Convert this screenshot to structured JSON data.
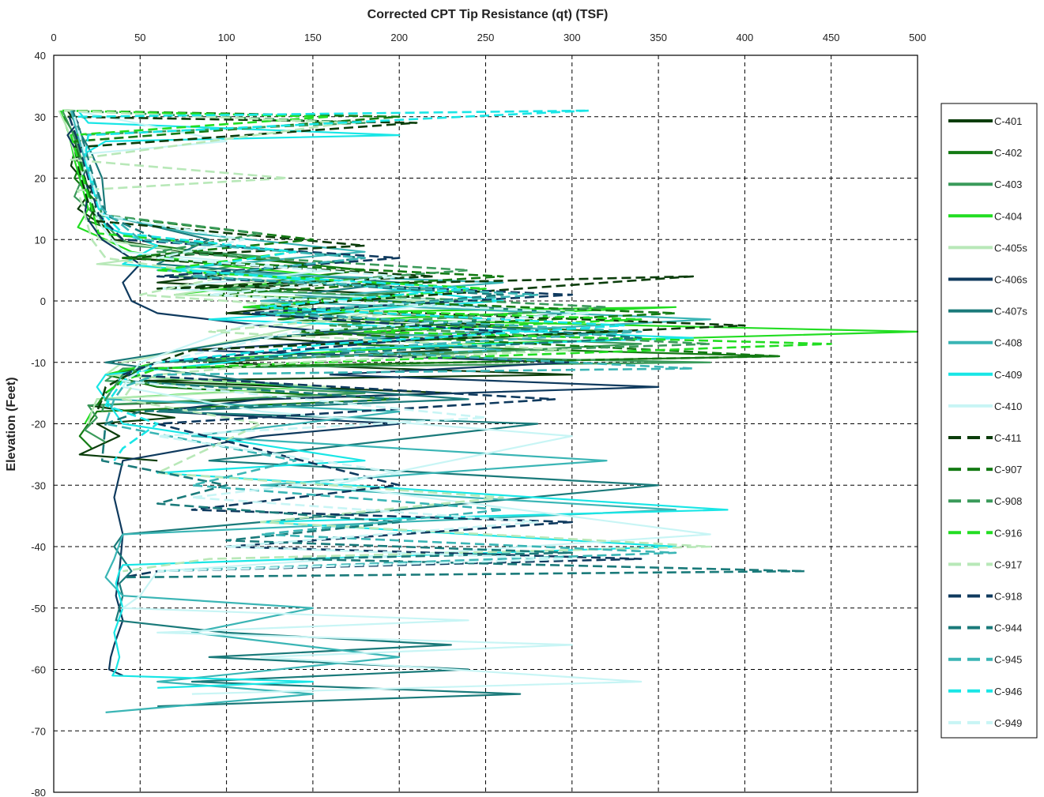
{
  "chart_data": {
    "type": "line",
    "title": "Corrected CPT Tip Resistance (qt) (TSF)",
    "xlabel": "",
    "ylabel": "Elevation (Feet)",
    "xlim": [
      0,
      500
    ],
    "ylim": [
      -80,
      40
    ],
    "x_ticks": [
      "0",
      "50",
      "100",
      "150",
      "200",
      "250",
      "300",
      "350",
      "400",
      "450",
      "500"
    ],
    "y_ticks": [
      "40",
      "30",
      "20",
      "10",
      "0",
      "-10",
      "-20",
      "-30",
      "-40",
      "-50",
      "-60",
      "-70",
      "-80"
    ],
    "x_axis_position": "top",
    "grid": true,
    "legend_position": "right",
    "series": [
      {
        "name": "C-401",
        "color": "#0b3d0b",
        "dashed": false,
        "x": [
          8,
          15,
          10,
          22,
          14,
          30,
          35,
          75,
          150,
          60,
          200,
          100,
          260,
          120,
          230,
          90,
          300,
          50,
          230,
          20,
          70,
          25,
          38,
          15,
          60
        ],
        "y": [
          31,
          28,
          22,
          18,
          15,
          12,
          10,
          8,
          6,
          3,
          1,
          -2,
          -4,
          -6,
          -8,
          -10,
          -12,
          -13,
          -15,
          -17,
          -19,
          -20,
          -22,
          -25,
          -26
        ]
      },
      {
        "name": "C-402",
        "color": "#137a13",
        "dashed": false,
        "x": [
          6,
          12,
          18,
          12,
          25,
          20,
          40,
          60,
          110,
          180,
          85,
          240,
          130,
          330,
          160,
          420,
          50,
          30,
          60,
          200,
          25,
          20,
          15,
          22
        ],
        "y": [
          30,
          27,
          24,
          20,
          16,
          13,
          11,
          9,
          7,
          5,
          2,
          0,
          -3,
          -5,
          -7,
          -9,
          -11,
          -12,
          -14,
          -16,
          -18,
          -20,
          -22,
          -24
        ]
      },
      {
        "name": "C-403",
        "color": "#3a9a5a",
        "dashed": false,
        "x": [
          5,
          10,
          14,
          18,
          12,
          28,
          35,
          45,
          130,
          70,
          220,
          110,
          250,
          160,
          340,
          200,
          380,
          40,
          30,
          180,
          20,
          25,
          18,
          30
        ],
        "y": [
          31,
          28,
          25,
          21,
          17,
          13,
          11,
          9,
          7,
          4,
          2,
          -1,
          -3,
          -5,
          -7,
          -9,
          -10,
          -11,
          -13,
          -15,
          -17,
          -19,
          -21,
          -23
        ]
      },
      {
        "name": "C-404",
        "color": "#22dd22",
        "dashed": false,
        "x": [
          4,
          9,
          12,
          16,
          20,
          14,
          30,
          45,
          90,
          160,
          70,
          240,
          120,
          360,
          180,
          500,
          240,
          60,
          30,
          150,
          25,
          22,
          18
        ],
        "y": [
          31,
          27,
          23,
          19,
          15,
          12,
          10,
          8,
          6,
          4,
          1,
          0,
          -2,
          -1,
          -3,
          -5,
          -7,
          -10,
          -12,
          -14,
          -16,
          -18,
          -20
        ]
      },
      {
        "name": "C-405s",
        "color": "#b8e8b8",
        "dashed": false,
        "x": [
          3,
          8,
          12,
          18,
          22,
          26,
          80,
          25,
          140,
          70,
          220,
          180,
          130,
          40,
          30,
          160,
          25,
          22,
          20
        ],
        "y": [
          31,
          28,
          24,
          20,
          16,
          10,
          8,
          6,
          4,
          1,
          0,
          -2,
          -5,
          -10,
          -12,
          -14,
          -16,
          -18,
          -20
        ]
      },
      {
        "name": "C-406s",
        "color": "#0f3a5e",
        "dashed": false,
        "x": [
          10,
          14,
          8,
          12,
          16,
          20,
          18,
          28,
          50,
          40,
          45,
          60,
          120,
          200,
          80,
          300,
          160,
          350,
          120,
          60,
          200,
          120,
          40,
          35,
          40,
          38,
          36,
          40,
          35,
          33,
          32,
          40
        ],
        "y": [
          31,
          29,
          27,
          25,
          22,
          18,
          14,
          10,
          6,
          3,
          0,
          -2,
          -4,
          -6,
          -8,
          -10,
          -12,
          -14,
          -16,
          -18,
          -20,
          -22,
          -26,
          -32,
          -38,
          -44,
          -48,
          -52,
          -56,
          -58,
          -60,
          -61
        ]
      },
      {
        "name": "C-407s",
        "color": "#1a7a7a",
        "dashed": false,
        "x": [
          12,
          16,
          22,
          28,
          30,
          90,
          60,
          200,
          140,
          300,
          120,
          30,
          140,
          240,
          60,
          280,
          90,
          350,
          200,
          40,
          35,
          45,
          38,
          40,
          36,
          100,
          230,
          90,
          240,
          80,
          270,
          60
        ],
        "y": [
          30,
          27,
          24,
          20,
          14,
          10,
          6,
          3,
          1,
          -2,
          -6,
          -10,
          -14,
          -16,
          -18,
          -20,
          -26,
          -30,
          -34,
          -38,
          -40,
          -44,
          -46,
          -48,
          -52,
          -54,
          -56,
          -58,
          -60,
          -62,
          -64,
          -66
        ]
      },
      {
        "name": "C-408",
        "color": "#3ab5b5",
        "dashed": false,
        "x": [
          10,
          14,
          18,
          24,
          28,
          80,
          180,
          60,
          260,
          120,
          380,
          180,
          260,
          60,
          40,
          30,
          200,
          80,
          320,
          120,
          360,
          40,
          35,
          30,
          40,
          150,
          80,
          200,
          60,
          150,
          30
        ],
        "y": [
          31,
          27,
          23,
          19,
          14,
          11,
          8,
          5,
          3,
          0,
          -3,
          -6,
          -8,
          -10,
          -12,
          -16,
          -18,
          -22,
          -26,
          -30,
          -34,
          -38,
          -42,
          -45,
          -48,
          -50,
          -54,
          -58,
          -62,
          -64,
          -67
        ]
      },
      {
        "name": "C-409",
        "color": "#19e6e6",
        "dashed": false,
        "x": [
          14,
          20,
          200,
          30,
          18,
          22,
          26,
          30,
          60,
          40,
          160,
          260,
          90,
          370,
          150,
          100,
          30,
          25,
          30,
          40,
          180,
          60,
          390,
          120,
          360,
          40,
          38,
          36,
          40,
          35,
          38,
          36,
          34,
          150,
          60
        ],
        "y": [
          31,
          29,
          27,
          26,
          24,
          20,
          16,
          12,
          9,
          6,
          3,
          0,
          -3,
          -6,
          -8,
          -10,
          -12,
          -14,
          -16,
          -20,
          -26,
          -28,
          -34,
          -36,
          -40,
          -43,
          -44,
          -46,
          -50,
          -54,
          -58,
          -60,
          -61,
          -62,
          -63
        ]
      },
      {
        "name": "C-410",
        "color": "#c8f5f5",
        "dashed": false,
        "x": [
          12,
          100,
          20,
          16,
          22,
          28,
          40,
          160,
          60,
          240,
          110,
          50,
          40,
          120,
          300,
          160,
          380,
          60,
          50,
          40,
          240,
          60,
          300,
          120,
          340,
          80
        ],
        "y": [
          31,
          26,
          24,
          20,
          16,
          12,
          8,
          5,
          2,
          0,
          -4,
          -10,
          -14,
          -18,
          -22,
          -30,
          -38,
          -44,
          -48,
          -50,
          -52,
          -54,
          -56,
          -58,
          -62,
          -64
        ]
      },
      {
        "name": "C-411",
        "color": "#0b3d0b",
        "dashed": true,
        "x": [
          8,
          210,
          12,
          15,
          20,
          25,
          180,
          40,
          220,
          60,
          370,
          120,
          400,
          80,
          50,
          30,
          28,
          25
        ],
        "y": [
          30,
          29,
          25,
          21,
          16,
          13,
          9,
          7,
          4,
          2,
          4,
          -1,
          -4,
          -8,
          -11,
          -14,
          -16,
          -18
        ]
      },
      {
        "name": "C-907",
        "color": "#137a13",
        "dashed": true,
        "x": [
          6,
          200,
          12,
          16,
          20,
          24,
          150,
          40,
          260,
          90,
          360,
          140,
          420,
          50,
          40,
          30,
          25
        ],
        "y": [
          31,
          30,
          26,
          22,
          18,
          14,
          10,
          7,
          4,
          1,
          -2,
          -5,
          -9,
          -11,
          -13,
          -15,
          -17
        ]
      },
      {
        "name": "C-908",
        "color": "#3a9a5a",
        "dashed": true,
        "x": [
          7,
          180,
          12,
          16,
          22,
          28,
          120,
          60,
          240,
          100,
          320,
          160,
          380,
          60,
          40,
          35,
          30,
          28
        ],
        "y": [
          31,
          29,
          27,
          23,
          19,
          14,
          11,
          8,
          5,
          2,
          -1,
          -4,
          -7,
          -10,
          -12,
          -14,
          -16,
          -18
        ]
      },
      {
        "name": "C-916",
        "color": "#22dd22",
        "dashed": true,
        "x": [
          5,
          160,
          10,
          14,
          18,
          22,
          26,
          140,
          60,
          250,
          110,
          340,
          180,
          450,
          250,
          60,
          40,
          30
        ],
        "y": [
          31,
          30,
          27,
          23,
          19,
          15,
          11,
          8,
          5,
          2,
          -1,
          -3,
          -5,
          -7,
          -9,
          -11,
          -13,
          -15
        ]
      },
      {
        "name": "C-917",
        "color": "#b8e8b8",
        "dashed": true,
        "x": [
          6,
          170,
          10,
          135,
          14,
          18,
          22,
          30,
          100,
          50,
          200,
          90,
          300,
          140,
          60,
          45,
          40,
          120,
          60,
          260,
          120,
          380,
          90,
          40
        ],
        "y": [
          31,
          29,
          23,
          20,
          18,
          14,
          10,
          7,
          4,
          1,
          -2,
          -5,
          -8,
          -10,
          -12,
          -14,
          -16,
          -20,
          -28,
          -32,
          -36,
          -40,
          -42,
          -44
        ]
      },
      {
        "name": "C-918",
        "color": "#0f3a5e",
        "dashed": true,
        "x": [
          9,
          14,
          18,
          22,
          26,
          40,
          200,
          60,
          300,
          110,
          260,
          60,
          40,
          290,
          60,
          200,
          80,
          300,
          100,
          340,
          60,
          40
        ],
        "y": [
          30,
          26,
          22,
          18,
          14,
          10,
          7,
          4,
          1,
          -2,
          -5,
          -10,
          -12,
          -16,
          -20,
          -30,
          -34,
          -36,
          -40,
          -42,
          -44,
          -45
        ]
      },
      {
        "name": "C-944",
        "color": "#1a7a7a",
        "dashed": true,
        "x": [
          11,
          16,
          20,
          24,
          30,
          60,
          180,
          80,
          260,
          140,
          340,
          60,
          40,
          200,
          50,
          30,
          28,
          100,
          60,
          200,
          100,
          300,
          140,
          435,
          40
        ],
        "y": [
          31,
          27,
          23,
          19,
          14,
          10,
          7,
          4,
          1,
          -2,
          -6,
          -10,
          -13,
          -16,
          -18,
          -20,
          -26,
          -30,
          -33,
          -36,
          -39,
          -41,
          -42,
          -44,
          -45
        ]
      },
      {
        "name": "C-945",
        "color": "#3ab5b5",
        "dashed": true,
        "x": [
          10,
          14,
          18,
          22,
          28,
          50,
          180,
          80,
          280,
          120,
          340,
          160,
          370,
          60,
          40,
          35,
          30,
          140,
          80,
          260,
          120,
          360,
          60
        ],
        "y": [
          31,
          27,
          23,
          19,
          15,
          10,
          7,
          4,
          1,
          -2,
          -5,
          -8,
          -11,
          -12,
          -14,
          -16,
          -20,
          -26,
          -30,
          -34,
          -38,
          -41,
          -44
        ]
      },
      {
        "name": "C-946",
        "color": "#19e6e6",
        "dashed": true,
        "x": [
          14,
          310,
          20,
          18,
          22,
          26,
          40,
          140,
          70,
          240,
          120,
          330,
          160,
          60,
          40,
          30,
          60,
          40,
          35
        ],
        "y": [
          30,
          31,
          27,
          23,
          19,
          15,
          11,
          8,
          5,
          2,
          -1,
          -4,
          -7,
          -10,
          -13,
          -17,
          -20,
          -24,
          -26
        ]
      },
      {
        "name": "C-949",
        "color": "#c8f5f5",
        "dashed": true,
        "x": [
          12,
          16,
          20,
          24,
          28,
          110,
          60,
          200,
          90,
          310,
          140,
          60,
          40,
          250,
          60,
          200,
          80,
          280,
          100,
          300,
          60
        ],
        "y": [
          30,
          26,
          22,
          18,
          14,
          10,
          7,
          4,
          1,
          -2,
          -5,
          -10,
          -13,
          -19,
          -22,
          -28,
          -32,
          -36,
          -40,
          -42,
          -44
        ]
      }
    ]
  }
}
